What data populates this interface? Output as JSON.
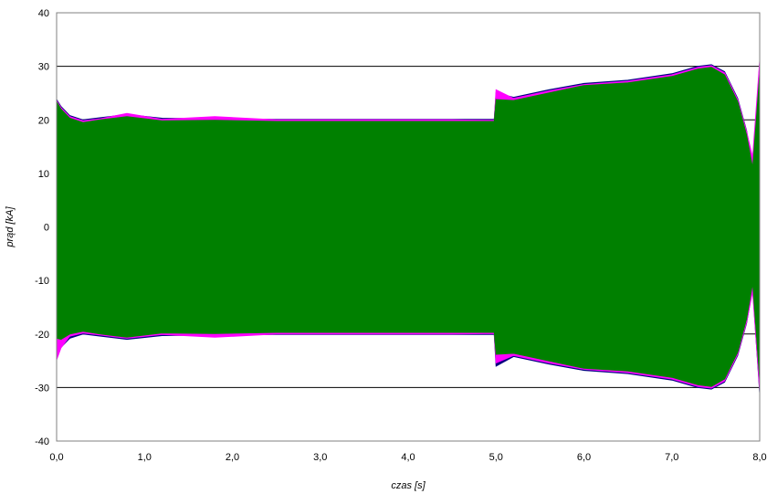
{
  "chart_data": {
    "type": "area",
    "xlabel": "czas [s]",
    "ylabel": "prąd [kA]",
    "xlim": [
      0,
      8
    ],
    "ylim": [
      -40,
      40
    ],
    "grid": "horizontal",
    "x_ticks": [
      "0,0",
      "1,0",
      "2,0",
      "3,0",
      "4,0",
      "5,0",
      "6,0",
      "7,0",
      "8,0"
    ],
    "y_ticks": [
      "40",
      "30",
      "20",
      "10",
      "0",
      "-10",
      "-20",
      "-30",
      "-40"
    ],
    "colors": {
      "navy": "#000080",
      "magenta": "#ff00ff",
      "green": "#008000"
    },
    "series": [
      {
        "color": "#000080",
        "x": [
          0.0,
          0.05,
          0.15,
          0.3,
          0.5,
          0.8,
          1.2,
          1.8,
          2.5,
          3.5,
          4.5,
          4.98,
          5.0,
          5.2,
          5.6,
          6.0,
          6.5,
          7.0,
          7.3,
          7.45,
          7.6,
          7.75,
          7.85,
          7.92,
          8.0
        ],
        "upper": [
          23.8,
          22.5,
          20.8,
          20.0,
          20.4,
          21.0,
          20.3,
          20.2,
          20.1,
          20.1,
          20.1,
          20.1,
          25.0,
          24.2,
          25.6,
          26.8,
          27.4,
          28.6,
          30.0,
          30.3,
          29.0,
          24.0,
          18.0,
          11.5,
          30.5
        ],
        "lower": [
          -23.8,
          -22.5,
          -20.8,
          -20.0,
          -20.4,
          -21.0,
          -20.3,
          -20.2,
          -20.1,
          -20.1,
          -20.1,
          -20.1,
          -26.0,
          -24.2,
          -25.6,
          -26.8,
          -27.4,
          -28.6,
          -30.0,
          -30.3,
          -29.0,
          -24.0,
          -18.0,
          -11.5,
          -31.0
        ]
      },
      {
        "color": "#ff00ff",
        "x": [
          0.0,
          0.05,
          0.15,
          0.3,
          0.5,
          0.8,
          1.2,
          1.8,
          2.5,
          3.5,
          4.5,
          4.98,
          5.0,
          5.2,
          5.6,
          6.0,
          6.5,
          7.0,
          7.3,
          7.45,
          7.6,
          7.75,
          7.85,
          7.92,
          8.0
        ],
        "upper": [
          23.6,
          22.3,
          20.6,
          19.8,
          20.2,
          21.2,
          20.1,
          20.6,
          20.0,
          20.0,
          20.0,
          19.9,
          25.6,
          24.0,
          25.4,
          26.6,
          27.2,
          28.4,
          29.8,
          30.1,
          28.8,
          23.8,
          17.8,
          13.0,
          31.0
        ],
        "lower": [
          -24.8,
          -22.6,
          -20.4,
          -19.8,
          -20.2,
          -20.8,
          -20.1,
          -20.6,
          -20.0,
          -20.0,
          -20.0,
          -19.9,
          -25.4,
          -24.0,
          -25.4,
          -26.6,
          -27.2,
          -28.4,
          -29.8,
          -30.1,
          -28.8,
          -23.8,
          -17.8,
          -12.0,
          -30.5
        ]
      },
      {
        "color": "#008000",
        "x": [
          0.0,
          0.05,
          0.15,
          0.3,
          0.5,
          0.8,
          1.2,
          1.8,
          2.5,
          3.5,
          4.5,
          4.98,
          5.0,
          5.2,
          5.6,
          6.0,
          6.5,
          7.0,
          7.3,
          7.45,
          7.6,
          7.75,
          7.85,
          7.92,
          8.0
        ],
        "upper": [
          23.4,
          22.0,
          20.3,
          19.5,
          20.0,
          20.6,
          19.8,
          19.9,
          19.7,
          19.7,
          19.7,
          19.7,
          23.8,
          23.6,
          25.0,
          26.4,
          26.9,
          28.1,
          29.5,
          29.8,
          28.4,
          23.4,
          17.2,
          11.0,
          28.5
        ],
        "lower": [
          -20.8,
          -21.0,
          -20.0,
          -19.5,
          -20.0,
          -20.6,
          -19.8,
          -19.9,
          -19.7,
          -19.7,
          -19.7,
          -19.7,
          -23.8,
          -23.6,
          -25.0,
          -26.4,
          -26.9,
          -28.1,
          -29.5,
          -29.8,
          -28.4,
          -23.4,
          -17.2,
          -10.5,
          -28.5
        ]
      }
    ]
  }
}
